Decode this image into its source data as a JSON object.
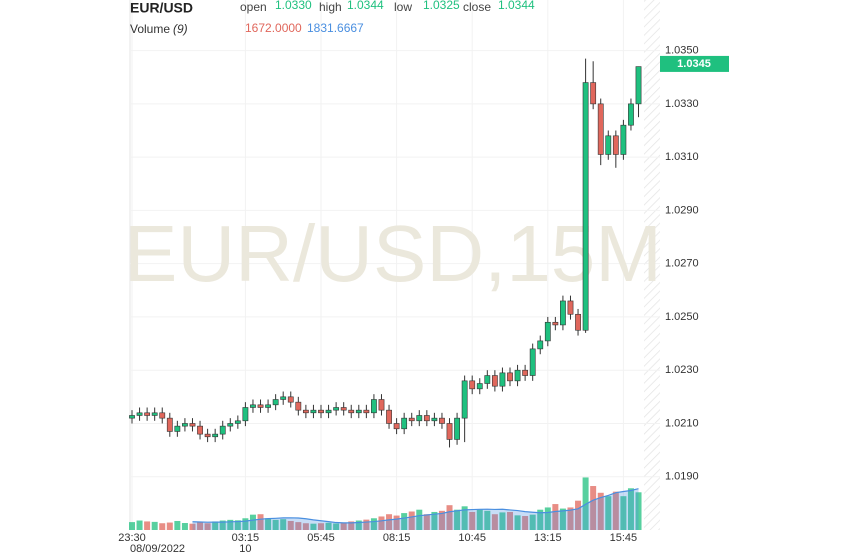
{
  "chart_data": {
    "type": "candlestick",
    "title": "EUR/USD",
    "watermark": "EUR/USD,15M",
    "ohlc_legend": [
      {
        "label": "open",
        "value": "1.0330"
      },
      {
        "label": "high",
        "value": "1.0344"
      },
      {
        "label": "low",
        "value": "1.0325"
      },
      {
        "label": "close",
        "value": "1.0344"
      }
    ],
    "categories": [
      "23:30",
      null,
      null,
      null,
      null,
      null,
      null,
      null,
      null,
      null,
      null,
      null,
      null,
      null,
      null,
      "03:15",
      null,
      null,
      null,
      null,
      null,
      null,
      null,
      null,
      null,
      "05:45",
      null,
      null,
      null,
      null,
      null,
      null,
      null,
      null,
      null,
      "08:15",
      null,
      null,
      null,
      null,
      null,
      null,
      null,
      null,
      null,
      "10:45",
      null,
      null,
      null,
      null,
      null,
      null,
      null,
      null,
      null,
      "13:15",
      null,
      null,
      null,
      null,
      null,
      null,
      null,
      null,
      null,
      "15:45",
      null,
      null
    ],
    "date_labels": [
      "08/09/2022",
      null,
      null,
      null,
      null,
      null,
      null,
      null,
      null,
      null,
      null,
      null,
      null,
      null,
      null,
      "10",
      null,
      null,
      null,
      null,
      null,
      null,
      null,
      null,
      null,
      null,
      null,
      null,
      null,
      null,
      null,
      null,
      null,
      null,
      null,
      null,
      null,
      null,
      null,
      null,
      null,
      null,
      null,
      null,
      null,
      null,
      null,
      null,
      null,
      null,
      null,
      null,
      null,
      null,
      null,
      null,
      null,
      null,
      null,
      null,
      null,
      null,
      null,
      null,
      null,
      null,
      null,
      null
    ],
    "open": [
      1.0212,
      1.0213,
      1.0214,
      1.0213,
      1.0214,
      1.0212,
      1.0207,
      1.0209,
      1.021,
      1.0209,
      1.0206,
      1.0205,
      1.0206,
      1.0209,
      1.021,
      1.0211,
      1.0216,
      1.0217,
      1.0216,
      1.0217,
      1.0219,
      1.022,
      1.0218,
      1.0215,
      1.0214,
      1.0215,
      1.0214,
      1.0215,
      1.0216,
      1.0215,
      1.0214,
      1.0215,
      1.0214,
      1.0219,
      1.0215,
      1.021,
      1.0208,
      1.0212,
      1.0211,
      1.0213,
      1.0211,
      1.0212,
      1.021,
      1.0204,
      1.0212,
      1.0226,
      1.0223,
      1.0225,
      1.0228,
      1.0224,
      1.0229,
      1.0226,
      1.023,
      1.0228,
      1.0238,
      1.0241,
      1.0248,
      1.0247,
      1.0256,
      1.0251,
      1.0245,
      1.0338,
      1.033,
      1.0311,
      1.0318,
      1.0311,
      1.0322,
      1.033
    ],
    "high": [
      1.0215,
      1.0216,
      1.0216,
      1.0216,
      1.0216,
      1.0214,
      1.0211,
      1.0212,
      1.0212,
      1.0211,
      1.0208,
      1.0208,
      1.0211,
      1.0212,
      1.0213,
      1.0218,
      1.0219,
      1.0219,
      1.0219,
      1.0221,
      1.0222,
      1.0222,
      1.022,
      1.0217,
      1.0217,
      1.0217,
      1.0217,
      1.0218,
      1.0218,
      1.0217,
      1.0217,
      1.0217,
      1.0221,
      1.0221,
      1.0217,
      1.0212,
      1.0214,
      1.0214,
      1.0215,
      1.0215,
      1.0214,
      1.0214,
      1.0212,
      1.0214,
      1.0228,
      1.0228,
      1.0227,
      1.023,
      1.023,
      1.0231,
      1.0231,
      1.0232,
      1.0232,
      1.024,
      1.0243,
      1.025,
      1.025,
      1.0258,
      1.0258,
      1.0253,
      1.0347,
      1.0346,
      1.0332,
      1.032,
      1.032,
      1.0324,
      1.0332,
      1.0344
    ],
    "low": [
      1.021,
      1.0211,
      1.0211,
      1.0211,
      1.021,
      1.0205,
      1.0205,
      1.0207,
      1.0207,
      1.0204,
      1.0203,
      1.0203,
      1.0204,
      1.0207,
      1.0208,
      1.0209,
      1.0214,
      1.0214,
      1.0214,
      1.0215,
      1.0217,
      1.0216,
      1.0213,
      1.0212,
      1.0212,
      1.0212,
      1.0212,
      1.0213,
      1.0213,
      1.0212,
      1.0212,
      1.0212,
      1.0212,
      1.0213,
      1.0208,
      1.0206,
      1.0206,
      1.0209,
      1.0209,
      1.0209,
      1.0209,
      1.0208,
      1.0201,
      1.0202,
      1.0203,
      1.0221,
      1.0221,
      1.0223,
      1.0222,
      1.0222,
      1.0224,
      1.0224,
      1.0226,
      1.0226,
      1.0236,
      1.0239,
      1.0245,
      1.0245,
      1.0249,
      1.0243,
      1.0244,
      1.0328,
      1.0307,
      1.0309,
      1.0306,
      1.0309,
      1.032,
      1.0325
    ],
    "close": [
      1.0213,
      1.0214,
      1.0213,
      1.0214,
      1.0212,
      1.0207,
      1.0209,
      1.021,
      1.0209,
      1.0206,
      1.0205,
      1.0206,
      1.0209,
      1.021,
      1.0211,
      1.0216,
      1.0217,
      1.0216,
      1.0217,
      1.0219,
      1.022,
      1.0218,
      1.0215,
      1.0214,
      1.0215,
      1.0214,
      1.0215,
      1.0216,
      1.0215,
      1.0214,
      1.0215,
      1.0214,
      1.0219,
      1.0215,
      1.021,
      1.0208,
      1.0212,
      1.0211,
      1.0213,
      1.0211,
      1.0212,
      1.021,
      1.0204,
      1.0212,
      1.0226,
      1.0223,
      1.0225,
      1.0228,
      1.0224,
      1.0229,
      1.0226,
      1.023,
      1.0228,
      1.0238,
      1.0241,
      1.0248,
      1.0247,
      1.0256,
      1.0251,
      1.0245,
      1.0338,
      1.033,
      1.0311,
      1.0318,
      1.0311,
      1.0322,
      1.033,
      1.0344
    ],
    "up_color": "#1fc07f",
    "down_color": "#e0675c",
    "ylim": [
      1.017,
      1.0369
    ],
    "yticks": [
      {
        "value": 1.035,
        "label": "1.0350"
      },
      {
        "value": 1.033,
        "label": "1.0330"
      },
      {
        "value": 1.031,
        "label": "1.0310"
      },
      {
        "value": 1.029,
        "label": "1.0290"
      },
      {
        "value": 1.027,
        "label": "1.0270"
      },
      {
        "value": 1.025,
        "label": "1.0250"
      },
      {
        "value": 1.023,
        "label": "1.0230"
      },
      {
        "value": 1.021,
        "label": "1.0210"
      },
      {
        "value": 1.019,
        "label": "1.0190"
      }
    ],
    "grid": true,
    "last_price": 1.0345,
    "volume": {
      "label": "Volume",
      "period": "(9)",
      "last_value_label": "1672.0000",
      "ma_value_label": "1831.6667",
      "ma_color": "#4a8fe0",
      "ylim": [
        0,
        23500
      ],
      "values": [
        350,
        420,
        380,
        360,
        300,
        330,
        400,
        310,
        280,
        350,
        300,
        380,
        420,
        450,
        430,
        520,
        680,
        700,
        520,
        450,
        480,
        400,
        350,
        300,
        280,
        300,
        320,
        290,
        330,
        380,
        420,
        460,
        520,
        600,
        700,
        640,
        750,
        820,
        900,
        700,
        800,
        850,
        1100,
        900,
        1050,
        800,
        900,
        850,
        700,
        780,
        800,
        650,
        620,
        680,
        900,
        1000,
        1150,
        950,
        1000,
        1300,
        2330,
        1950,
        1650,
        1500,
        1700,
        1500,
        1850,
        1672
      ],
      "ma": [
        null,
        null,
        null,
        null,
        null,
        null,
        null,
        null,
        365,
        355,
        347,
        348,
        350,
        362,
        375,
        393,
        437,
        479,
        506,
        519,
        536,
        541,
        531,
        499,
        450,
        409,
        370,
        331,
        316,
        317,
        332,
        351,
        375,
        408,
        449,
        483,
        528,
        579,
        634,
        667,
        701,
        735,
        808,
        852,
        893,
        906,
        917,
        922,
        911,
        920,
        889,
        861,
        816,
        787,
        764,
        776,
        819,
        849,
        881,
        939,
        1139,
        1322,
        1439,
        1533,
        1653,
        1708,
        1752,
        1831.6667
      ]
    }
  }
}
